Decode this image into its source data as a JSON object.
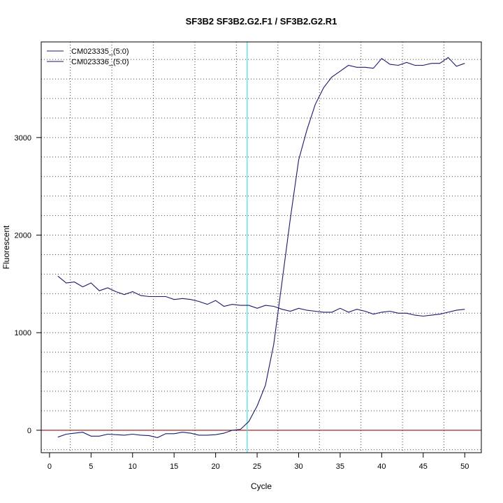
{
  "chart_data": {
    "type": "line",
    "title": "SF3B2  SF3B2.G2.F1 / SF3B2.G2.R1",
    "xlabel": "Cycle",
    "ylabel": "Fluorescent",
    "xlim": [
      -1,
      52
    ],
    "ylim": [
      -230,
      3980
    ],
    "xticks": [
      0,
      5,
      10,
      15,
      20,
      25,
      30,
      35,
      40,
      45,
      50
    ],
    "yticks": [
      0,
      1000,
      2000,
      3000
    ],
    "grid": true,
    "legend_position": "top-left",
    "threshold_x": 23.8,
    "threshold_x_color": "#40e0e0",
    "baseline_y": 0,
    "baseline_color": "#a52a2a",
    "line_color": "#1a1a6e",
    "series": [
      {
        "name": "CM023335_(5:0)",
        "x": [
          1,
          2,
          3,
          4,
          5,
          6,
          7,
          8,
          9,
          10,
          11,
          12,
          13,
          14,
          15,
          16,
          17,
          18,
          19,
          20,
          21,
          22,
          23,
          24,
          25,
          26,
          27,
          28,
          29,
          30,
          31,
          32,
          33,
          34,
          35,
          36,
          37,
          38,
          39,
          40,
          41,
          42,
          43,
          44,
          45,
          46,
          47,
          48,
          49,
          50
        ],
        "values": [
          -70,
          -40,
          -30,
          -20,
          -60,
          -60,
          -40,
          -45,
          -50,
          -40,
          -50,
          -55,
          -75,
          -35,
          -35,
          -20,
          -30,
          -50,
          -50,
          -45,
          -30,
          0,
          10,
          90,
          250,
          460,
          880,
          1520,
          2170,
          2770,
          3080,
          3340,
          3510,
          3620,
          3680,
          3740,
          3720,
          3720,
          3710,
          3810,
          3750,
          3740,
          3770,
          3740,
          3740,
          3760,
          3760,
          3820,
          3730,
          3760
        ]
      },
      {
        "name": "CM023336_(5:0)",
        "x": [
          1,
          2,
          3,
          4,
          5,
          6,
          7,
          8,
          9,
          10,
          11,
          12,
          13,
          14,
          15,
          16,
          17,
          18,
          19,
          20,
          21,
          22,
          23,
          24,
          25,
          26,
          27,
          28,
          29,
          30,
          31,
          32,
          33,
          34,
          35,
          36,
          37,
          38,
          39,
          40,
          41,
          42,
          43,
          44,
          45,
          46,
          47,
          48,
          49,
          50
        ],
        "values": [
          1580,
          1510,
          1520,
          1470,
          1510,
          1430,
          1460,
          1420,
          1390,
          1420,
          1380,
          1370,
          1370,
          1370,
          1340,
          1350,
          1340,
          1320,
          1290,
          1330,
          1270,
          1290,
          1280,
          1280,
          1250,
          1280,
          1270,
          1240,
          1220,
          1250,
          1230,
          1220,
          1210,
          1210,
          1250,
          1210,
          1240,
          1220,
          1190,
          1210,
          1220,
          1200,
          1200,
          1180,
          1170,
          1180,
          1190,
          1210,
          1230,
          1240
        ]
      }
    ]
  }
}
